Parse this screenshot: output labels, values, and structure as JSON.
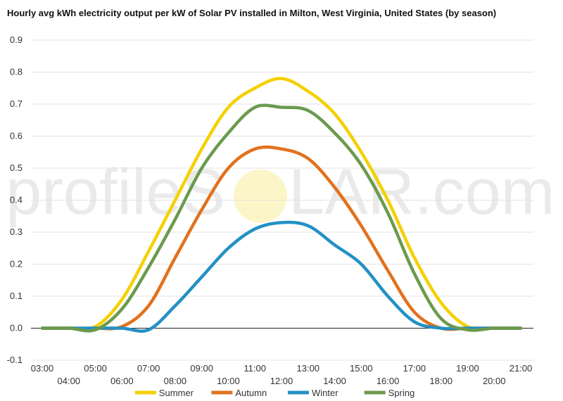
{
  "chart_data": {
    "type": "line",
    "title": "Hourly avg kWh electricity output per kW of Solar PV installed in Milton, West Virginia, United States (by season)",
    "xlabel": "",
    "ylabel": "",
    "ylim": [
      -0.1,
      0.9
    ],
    "yticks": [
      "-0.1",
      "0.0",
      "0.1",
      "0.2",
      "0.3",
      "0.4",
      "0.5",
      "0.6",
      "0.7",
      "0.8",
      "0.9"
    ],
    "x": [
      "03:00",
      "04:00",
      "05:00",
      "06:00",
      "07:00",
      "08:00",
      "09:00",
      "10:00",
      "11:00",
      "12:00",
      "13:00",
      "14:00",
      "15:00",
      "16:00",
      "17:00",
      "18:00",
      "19:00",
      "20:00",
      "21:00"
    ],
    "grid": "horizontal",
    "legend": "bottom",
    "watermark": {
      "left": "profileS",
      "right": "LAR.com"
    },
    "series": [
      {
        "name": "Summer",
        "color": "#f5d000",
        "values": [
          0,
          0,
          0.005,
          0.09,
          0.24,
          0.4,
          0.56,
          0.69,
          0.75,
          0.78,
          0.74,
          0.67,
          0.55,
          0.4,
          0.22,
          0.08,
          0.005,
          0,
          0
        ]
      },
      {
        "name": "Autumn",
        "color": "#e2711d",
        "values": [
          0,
          0,
          0,
          0.005,
          0.07,
          0.22,
          0.37,
          0.5,
          0.56,
          0.56,
          0.53,
          0.44,
          0.32,
          0.18,
          0.05,
          0,
          0,
          0,
          0
        ]
      },
      {
        "name": "Winter",
        "color": "#2391c4",
        "values": [
          0,
          0,
          0,
          0,
          -0.005,
          0.07,
          0.16,
          0.25,
          0.31,
          0.33,
          0.32,
          0.26,
          0.2,
          0.1,
          0.02,
          0,
          0,
          0,
          0
        ]
      },
      {
        "name": "Spring",
        "color": "#6b9a4d",
        "values": [
          0,
          0,
          -0.005,
          0.06,
          0.19,
          0.34,
          0.5,
          0.61,
          0.69,
          0.69,
          0.68,
          0.61,
          0.51,
          0.36,
          0.17,
          0.03,
          -0.005,
          0,
          0
        ]
      }
    ]
  }
}
